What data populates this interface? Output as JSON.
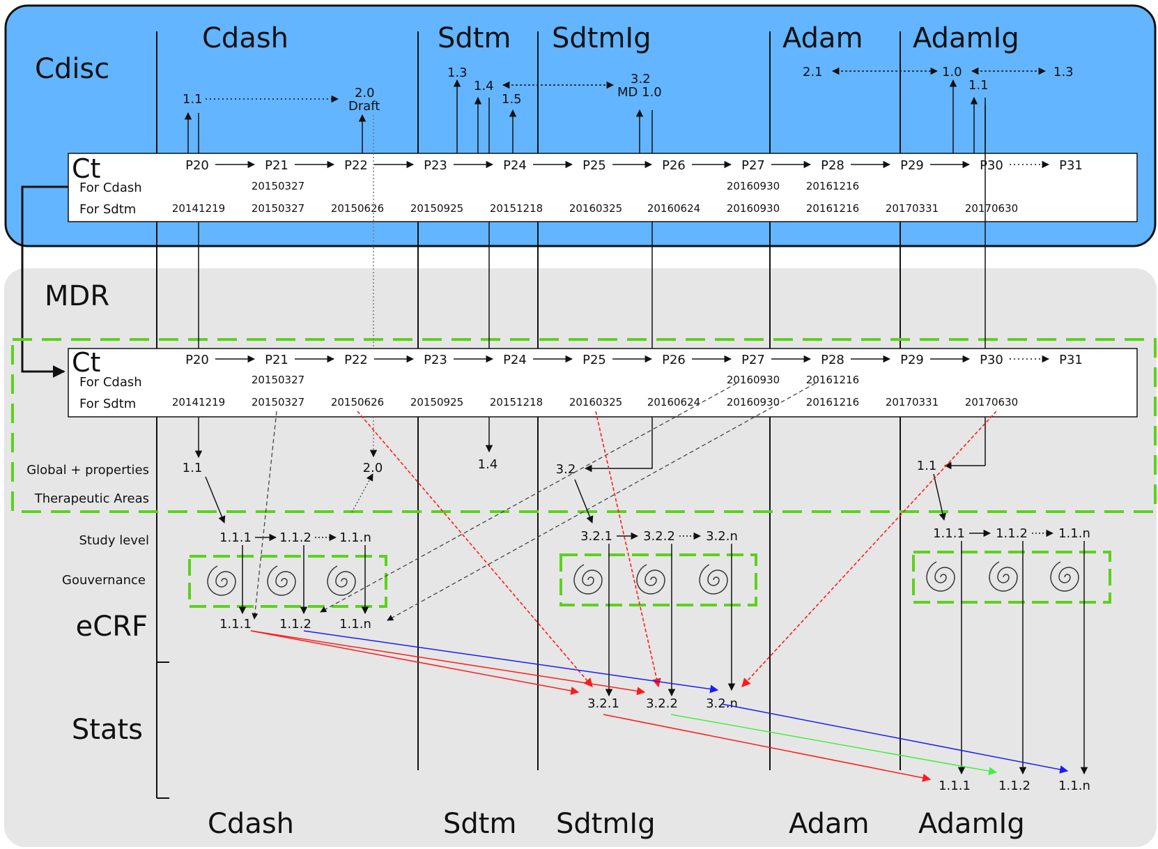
{
  "regions": {
    "cdisc": "Cdisc",
    "mdr": "MDR"
  },
  "headers": [
    "Cdash",
    "Sdtm",
    "SdtmIg",
    "Adam",
    "AdamIg"
  ],
  "footers": [
    "Cdash",
    "Sdtm",
    "SdtmIg",
    "Adam",
    "AdamIg"
  ],
  "ct": {
    "title": "Ct",
    "row_cdash": "For Cdash",
    "row_sdtm": "For Sdtm",
    "packages": [
      "P20",
      "P21",
      "P22",
      "P23",
      "P24",
      "P25",
      "P26",
      "P27",
      "P28",
      "P29",
      "P30",
      "P31"
    ],
    "cdash_dates": [
      "20150327",
      "20160930",
      "20161216"
    ],
    "sdtm_dates": [
      "20141219",
      "20150327",
      "20150626",
      "20150925",
      "20151218",
      "20160325",
      "20160624",
      "20160930",
      "20161216",
      "20170331",
      "20170630"
    ]
  },
  "cdisc_versions": {
    "cdash_1_1": "1.1",
    "cdash_2_0": "2.0",
    "cdash_draft": "Draft",
    "sdtm_1_3": "1.3",
    "sdtm_1_4": "1.4",
    "sdtm_1_5": "1.5",
    "sdtmig_3_2": "3.2",
    "sdtmig_md": "MD 1.0",
    "adam_2_1": "2.1",
    "adamig_1_0": "1.0",
    "adamig_1_1": "1.1",
    "adamig_1_3": "1.3"
  },
  "levels": {
    "global": "Global + properties",
    "therapeutic": "Therapeutic Areas",
    "study": "Study level",
    "gouvernance": "Gouvernance",
    "ecrf": "eCRF",
    "stats": "Stats"
  },
  "mdr_versions": {
    "cdash_global": "1.1",
    "cdash_global_2": "2.0",
    "sdtm_global": "1.4",
    "sdtmig_global": "3.2",
    "adamig_global": "1.1",
    "cdash_study": [
      "1.1.1",
      "1.1.2",
      "1.1.n"
    ],
    "sdtmig_study": [
      "3.2.1",
      "3.2.2",
      "3.2.n"
    ],
    "adamig_study": [
      "1.1.1",
      "1.1.2",
      "1.1.n"
    ],
    "ecrf": [
      "1.1.1",
      "1.1.2",
      "1.1.n"
    ],
    "sdtmig_stats": [
      "3.2.1",
      "3.2.2",
      "3.2.n"
    ],
    "adamig_stats": [
      "1.1.1",
      "1.1.2",
      "1.1.n"
    ]
  },
  "colors": {
    "cdisc_fill": "#63b5ff",
    "mdr_fill": "#e6e6e6",
    "green_dash": "#5cd11c",
    "red": "#ff1a1a",
    "blue": "#1a1aff",
    "green": "#44ee44"
  }
}
